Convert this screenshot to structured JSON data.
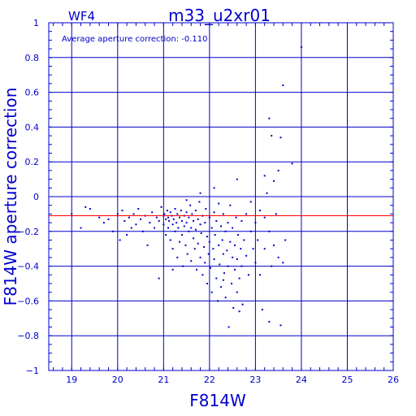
{
  "chart_data": {
    "type": "scatter",
    "title": "m33_u2xr01",
    "chip": "WF4",
    "xlabel": "F814W",
    "ylabel": "F814W aperture correction",
    "annotation": "Average aperture correction: -0.110",
    "xlim": [
      18.5,
      26
    ],
    "ylim": [
      -1,
      1
    ],
    "xticks": [
      19,
      20,
      21,
      22,
      23,
      24,
      25,
      26
    ],
    "yticks": [
      -1,
      -0.8,
      -0.6,
      -0.4,
      -0.2,
      0,
      0.2,
      0.4,
      0.6,
      0.8,
      1
    ],
    "ytick_labels": [
      "−1",
      "−0.8",
      "−0.6",
      "−0.4",
      "−0.2",
      "0",
      "0.2",
      "0.4",
      "0.6",
      "0.8",
      "1"
    ],
    "average_line": -0.11,
    "grid": true,
    "colors": {
      "axes": "#0000cc",
      "points": "#0000cc",
      "average": "#ff0000"
    },
    "points": [
      [
        19.0,
        -0.1
      ],
      [
        19.2,
        -0.18
      ],
      [
        19.3,
        -0.06
      ],
      [
        19.4,
        -0.07
      ],
      [
        19.6,
        -0.12
      ],
      [
        19.7,
        -0.15
      ],
      [
        19.8,
        -0.13
      ],
      [
        19.9,
        -0.2
      ],
      [
        20.0,
        -0.1
      ],
      [
        20.05,
        -0.25
      ],
      [
        20.1,
        -0.08
      ],
      [
        20.15,
        -0.14
      ],
      [
        20.2,
        -0.22
      ],
      [
        20.25,
        -0.12
      ],
      [
        20.3,
        -0.18
      ],
      [
        20.35,
        -0.1
      ],
      [
        20.4,
        -0.16
      ],
      [
        20.45,
        -0.07
      ],
      [
        20.5,
        -0.13
      ],
      [
        20.55,
        -0.2
      ],
      [
        20.6,
        -0.11
      ],
      [
        20.65,
        -0.28
      ],
      [
        20.7,
        -0.15
      ],
      [
        20.75,
        -0.09
      ],
      [
        20.8,
        -0.18
      ],
      [
        20.85,
        -0.12
      ],
      [
        20.9,
        -0.14
      ],
      [
        20.95,
        -0.06
      ],
      [
        21.0,
        -0.11
      ],
      [
        21.0,
        -0.16
      ],
      [
        21.02,
        -0.1
      ],
      [
        21.05,
        -0.13
      ],
      [
        21.05,
        -0.22
      ],
      [
        21.08,
        -0.08
      ],
      [
        21.1,
        -0.12
      ],
      [
        21.1,
        -0.18
      ],
      [
        21.12,
        -0.14
      ],
      [
        21.15,
        -0.09
      ],
      [
        21.15,
        -0.25
      ],
      [
        21.18,
        -0.11
      ],
      [
        21.2,
        -0.16
      ],
      [
        21.2,
        -0.3
      ],
      [
        21.22,
        -0.13
      ],
      [
        21.25,
        -0.07
      ],
      [
        21.25,
        -0.2
      ],
      [
        21.28,
        -0.15
      ],
      [
        21.3,
        -0.1
      ],
      [
        21.3,
        -0.35
      ],
      [
        21.32,
        -0.18
      ],
      [
        21.35,
        -0.12
      ],
      [
        21.35,
        -0.26
      ],
      [
        21.38,
        -0.08
      ],
      [
        21.4,
        -0.14
      ],
      [
        21.4,
        -0.22
      ],
      [
        21.42,
        -0.4
      ],
      [
        21.45,
        -0.11
      ],
      [
        21.45,
        -0.17
      ],
      [
        21.48,
        -0.28
      ],
      [
        21.5,
        -0.09
      ],
      [
        21.5,
        -0.15
      ],
      [
        21.52,
        -0.33
      ],
      [
        21.55,
        -0.12
      ],
      [
        21.55,
        -0.2
      ],
      [
        21.58,
        -0.05
      ],
      [
        21.6,
        -0.18
      ],
      [
        21.6,
        -0.37
      ],
      [
        21.62,
        -0.1
      ],
      [
        21.65,
        -0.24
      ],
      [
        21.65,
        -0.14
      ],
      [
        21.68,
        -0.3
      ],
      [
        21.7,
        -0.08
      ],
      [
        21.7,
        -0.19
      ],
      [
        21.72,
        -0.42
      ],
      [
        21.75,
        -0.13
      ],
      [
        21.75,
        -0.27
      ],
      [
        21.78,
        -0.03
      ],
      [
        21.8,
        -0.16
      ],
      [
        21.8,
        -0.35
      ],
      [
        21.82,
        -0.21
      ],
      [
        21.85,
        -0.11
      ],
      [
        21.85,
        -0.45
      ],
      [
        21.88,
        -0.29
      ],
      [
        21.9,
        -0.15
      ],
      [
        21.9,
        -0.38
      ],
      [
        21.92,
        -0.07
      ],
      [
        21.95,
        -0.23
      ],
      [
        21.95,
        -0.5
      ],
      [
        21.98,
        -0.33
      ],
      [
        22.0,
        -0.12
      ],
      [
        22.0,
        -0.26
      ],
      [
        22.02,
        -0.41
      ],
      [
        22.05,
        -0.18
      ],
      [
        22.05,
        -0.55
      ],
      [
        22.08,
        -0.3
      ],
      [
        22.1,
        -0.09
      ],
      [
        22.1,
        -0.36
      ],
      [
        22.12,
        -0.22
      ],
      [
        22.15,
        -0.47
      ],
      [
        22.15,
        -0.14
      ],
      [
        22.18,
        -0.6
      ],
      [
        22.2,
        -0.28
      ],
      [
        22.2,
        -0.04
      ],
      [
        22.22,
        -0.39
      ],
      [
        22.25,
        -0.17
      ],
      [
        22.25,
        -0.52
      ],
      [
        22.28,
        -0.25
      ],
      [
        22.3,
        -0.33
      ],
      [
        22.3,
        -0.1
      ],
      [
        22.32,
        -0.44
      ],
      [
        22.35,
        -0.2
      ],
      [
        22.35,
        -0.58
      ],
      [
        22.38,
        -0.31
      ],
      [
        22.4,
        -0.15
      ],
      [
        22.4,
        -0.4
      ],
      [
        22.42,
        -0.75
      ],
      [
        22.45,
        -0.26
      ],
      [
        22.45,
        -0.05
      ],
      [
        22.48,
        -0.5
      ],
      [
        22.5,
        -0.35
      ],
      [
        22.5,
        -0.18
      ],
      [
        22.52,
        -0.64
      ],
      [
        22.55,
        -0.28
      ],
      [
        22.55,
        -0.42
      ],
      [
        22.58,
        -0.12
      ],
      [
        22.6,
        -0.36
      ],
      [
        22.6,
        -0.55
      ],
      [
        22.62,
        -0.22
      ],
      [
        22.65,
        -0.47
      ],
      [
        22.65,
        -0.66
      ],
      [
        22.68,
        -0.3
      ],
      [
        22.7,
        -0.14
      ],
      [
        22.7,
        -0.4
      ],
      [
        22.72,
        -0.62
      ],
      [
        22.75,
        -0.25
      ],
      [
        22.8,
        -0.34
      ],
      [
        22.8,
        -0.1
      ],
      [
        22.85,
        -0.45
      ],
      [
        22.9,
        -0.2
      ],
      [
        22.9,
        -0.03
      ],
      [
        22.95,
        -0.3
      ],
      [
        23.0,
        -0.15
      ],
      [
        23.0,
        -0.38
      ],
      [
        23.05,
        -0.25
      ],
      [
        23.1,
        -0.08
      ],
      [
        23.1,
        -0.45
      ],
      [
        23.15,
        -0.65
      ],
      [
        23.2,
        -0.3
      ],
      [
        23.2,
        -0.12
      ],
      [
        23.25,
        0.02
      ],
      [
        23.3,
        -0.2
      ],
      [
        23.3,
        -0.72
      ],
      [
        23.35,
        -0.4
      ],
      [
        23.4,
        -0.28
      ],
      [
        23.4,
        0.09
      ],
      [
        23.45,
        -0.1
      ],
      [
        23.5,
        0.15
      ],
      [
        23.5,
        -0.35
      ],
      [
        23.55,
        0.34
      ],
      [
        23.55,
        -0.74
      ],
      [
        23.6,
        -0.38
      ],
      [
        23.6,
        0.64
      ],
      [
        23.65,
        -0.25
      ],
      [
        23.3,
        0.45
      ],
      [
        23.35,
        0.35
      ],
      [
        23.2,
        0.12
      ],
      [
        23.8,
        0.19
      ],
      [
        24.0,
        0.86
      ],
      [
        22.6,
        0.1
      ],
      [
        22.1,
        0.05
      ],
      [
        21.8,
        0.02
      ],
      [
        21.5,
        -0.02
      ],
      [
        20.9,
        -0.47
      ],
      [
        21.2,
        -0.42
      ],
      [
        22.3,
        -0.48
      ]
    ]
  }
}
